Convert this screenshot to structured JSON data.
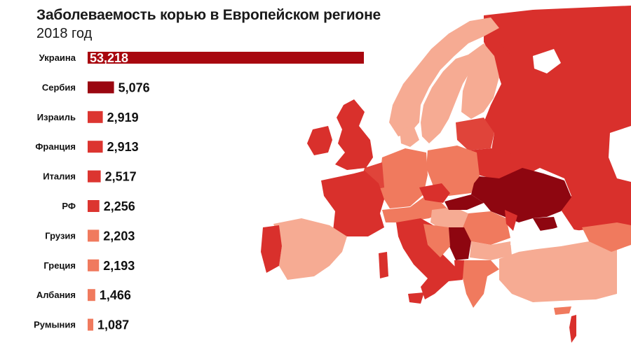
{
  "header": {
    "title": "Заболеваемость корью в Европейском регионе",
    "subtitle": "2018 год"
  },
  "colors": {
    "darkest": "#8e0610",
    "dark": "#b3121b",
    "mid": "#d9302c",
    "light": "#f07a5e",
    "lightest": "#f6ab93",
    "sea": "#ffffff"
  },
  "chart_data": {
    "type": "bar",
    "orientation": "horizontal",
    "title": "Заболеваемость корью в Европейском регионе",
    "subtitle": "2018 год",
    "categories": [
      "Украина",
      "Сербия",
      "Израиль",
      "Франция",
      "Италия",
      "РФ",
      "Грузия",
      "Греция",
      "Албания",
      "Румыния"
    ],
    "values": [
      53218,
      5076,
      2919,
      2913,
      2517,
      2256,
      2203,
      2193,
      1466,
      1087
    ],
    "labels": [
      "53,218",
      "5,076",
      "2,919",
      "2,913",
      "2,517",
      "2,256",
      "2,203",
      "2,193",
      "1,466",
      "1,087"
    ],
    "bar_colors": [
      "#a8070f",
      "#9a0610",
      "#dc3530",
      "#dc3530",
      "#dc3530",
      "#dc3530",
      "#f07a5e",
      "#f07a5e",
      "#f07a5e",
      "#f07a5e"
    ],
    "xlim": [
      0,
      53218
    ]
  }
}
